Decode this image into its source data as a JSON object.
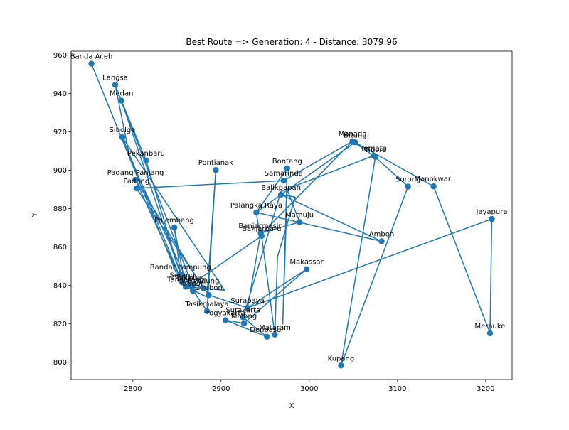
{
  "chart_data": {
    "type": "line",
    "title": "Best Route => Generation: 4 - Distance: 3079.96",
    "xlabel": "X",
    "ylabel": "Y",
    "xlim": [
      2730,
      3230
    ],
    "ylim": [
      791,
      962
    ],
    "xticks": [
      2800,
      2900,
      3000,
      3100,
      3200
    ],
    "yticks": [
      800,
      820,
      840,
      860,
      880,
      900,
      920,
      940,
      960
    ],
    "grid": false,
    "color": "#1f77b4",
    "cities": [
      {
        "name": "Banda Aceh",
        "x": 2753,
        "y": 955.5
      },
      {
        "name": "Langsa",
        "x": 2780,
        "y": 944.5
      },
      {
        "name": "Medan",
        "x": 2787,
        "y": 936.2
      },
      {
        "name": "Sibolga",
        "x": 2788,
        "y": 917.2
      },
      {
        "name": "Pekanbaru",
        "x": 2815,
        "y": 905.0
      },
      {
        "name": "Padang Panjang",
        "x": 2803,
        "y": 895.0
      },
      {
        "name": "Padang",
        "x": 2804,
        "y": 890.6
      },
      {
        "name": "Palembang",
        "x": 2847,
        "y": 870.2
      },
      {
        "name": "Bandar Lampung",
        "x": 2854,
        "y": 845.8
      },
      {
        "name": "Serang",
        "x": 2856,
        "y": 841.6
      },
      {
        "name": "Tangerang",
        "x": 2860,
        "y": 839.3
      },
      {
        "name": "Jakarta",
        "x": 2864,
        "y": 840.3
      },
      {
        "name": "Bogor",
        "x": 2868,
        "y": 837.2
      },
      {
        "name": "Bandung",
        "x": 2880,
        "y": 838.6
      },
      {
        "name": "Cirebon",
        "x": 2886,
        "y": 835.0
      },
      {
        "name": "Tasikmalaya",
        "x": 2884,
        "y": 826.6
      },
      {
        "name": "Yogyakarta",
        "x": 2905,
        "y": 821.9
      },
      {
        "name": "Surakarta",
        "x": 2925,
        "y": 823.4
      },
      {
        "name": "Malang",
        "x": 2926,
        "y": 820.3
      },
      {
        "name": "Surabaya",
        "x": 2930,
        "y": 828.3
      },
      {
        "name": "Denpasar",
        "x": 2952,
        "y": 813.3
      },
      {
        "name": "Mataram",
        "x": 2961,
        "y": 814.4
      },
      {
        "name": "Pontianak",
        "x": 2894,
        "y": 900.1
      },
      {
        "name": "Palangka Raya",
        "x": 2940,
        "y": 878.0
      },
      {
        "name": "Banjarmasin",
        "x": 2945,
        "y": 867.3
      },
      {
        "name": "Banjarbaru",
        "x": 2946,
        "y": 865.8
      },
      {
        "name": "Balikpapan",
        "x": 2968,
        "y": 887.3
      },
      {
        "name": "Samarinda",
        "x": 2971,
        "y": 894.6
      },
      {
        "name": "Bontang",
        "x": 2975,
        "y": 901.0
      },
      {
        "name": "Mamuju",
        "x": 2989,
        "y": 873.0
      },
      {
        "name": "Makassar",
        "x": 2997,
        "y": 848.5
      },
      {
        "name": "Manado",
        "x": 3049,
        "y": 915.1
      },
      {
        "name": "Bitung",
        "x": 3052,
        "y": 914.5
      },
      {
        "name": "Ternate",
        "x": 3073,
        "y": 907.6
      },
      {
        "name": "Tidore",
        "x": 3075,
        "y": 906.9
      },
      {
        "name": "Sorong",
        "x": 3112,
        "y": 891.5
      },
      {
        "name": "Manokwari",
        "x": 3141,
        "y": 891.6
      },
      {
        "name": "Ambon",
        "x": 3082,
        "y": 863.0
      },
      {
        "name": "Kupang",
        "x": 3036,
        "y": 798.3
      },
      {
        "name": "Jayapura",
        "x": 3207,
        "y": 874.6
      },
      {
        "name": "Merauke",
        "x": 3205,
        "y": 815.1
      }
    ],
    "route": [
      [
        2753,
        955.5
      ],
      [
        2852,
        843.3
      ],
      [
        2870,
        836.9
      ],
      [
        2780,
        944.5
      ],
      [
        2797,
        905.5
      ],
      [
        2864,
        840.3
      ],
      [
        2884,
        826.6
      ],
      [
        2894,
        900.1
      ],
      [
        2884,
        834.0
      ],
      [
        2860,
        839.3
      ],
      [
        2904,
        837.5
      ],
      [
        2788,
        917.2
      ],
      [
        2856,
        841.6
      ],
      [
        2803,
        895.0
      ],
      [
        2880,
        838.6
      ],
      [
        2856,
        842.6
      ],
      [
        2815,
        905.0
      ],
      [
        2787,
        936.2
      ],
      [
        2854,
        845.8
      ],
      [
        2847,
        870.2
      ],
      [
        2860,
        838.5
      ],
      [
        2946,
        865.8
      ],
      [
        2961,
        814.4
      ],
      [
        2964,
        855.0
      ],
      [
        2984,
        886.0
      ],
      [
        2968,
        887.3
      ],
      [
        2940,
        878.0
      ],
      [
        2975,
        901.0
      ],
      [
        2970,
        820.0
      ],
      [
        2975,
        890.0
      ],
      [
        2989,
        873.0
      ],
      [
        2945,
        867.3
      ],
      [
        2930,
        828.3
      ],
      [
        2997,
        848.5
      ],
      [
        2926,
        820.3
      ],
      [
        2905,
        821.9
      ],
      [
        2952,
        813.3
      ],
      [
        2925,
        823.4
      ],
      [
        2968,
        889.0
      ],
      [
        3073,
        907.6
      ],
      [
        3112,
        891.5
      ],
      [
        3036,
        798.3
      ],
      [
        3075,
        906.9
      ],
      [
        3049,
        915.1
      ],
      [
        3052,
        914.5
      ],
      [
        3141,
        891.6
      ],
      [
        3205,
        815.1
      ],
      [
        3207,
        874.6
      ],
      [
        2930,
        828.3
      ],
      [
        2886,
        835.0
      ],
      [
        2804,
        890.6
      ],
      [
        2971,
        894.6
      ],
      [
        3049,
        915.1
      ],
      [
        2944,
        866.0
      ],
      [
        2940,
        878.0
      ],
      [
        3082,
        863.0
      ],
      [
        2968,
        887.3
      ],
      [
        3052,
        914.5
      ]
    ]
  }
}
